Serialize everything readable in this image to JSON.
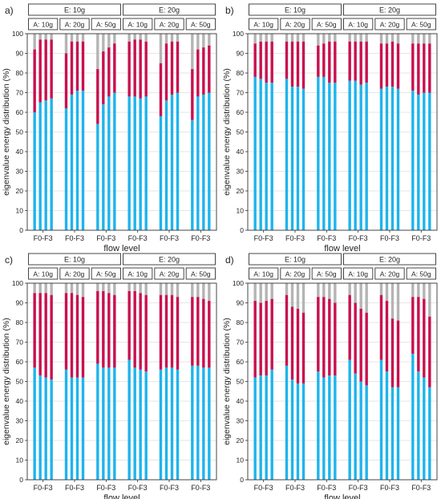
{
  "colors": {
    "bottom": "#1eb4ec",
    "middle": "#c8104e",
    "top": "#b4b4b4",
    "grid": "#dedede",
    "frame": "#333333"
  },
  "chart_data": [
    {
      "panel_label": "a)",
      "type": "bar",
      "stacked": true,
      "ylabel": "eigenvalue energy distribution (%)",
      "xlabel": "flow level",
      "ylim": [
        0,
        100
      ],
      "yticks": [
        0,
        10,
        20,
        30,
        40,
        50,
        60,
        70,
        80,
        90,
        100
      ],
      "grid": true,
      "E_groups": [
        "E: 10g",
        "E: 20g"
      ],
      "A_groups": [
        "A: 10g",
        "A: 20g",
        "A: 50g",
        "A: 10g",
        "A: 20g",
        "A: 50g"
      ],
      "group_xtick_labels": [
        "F0-F3",
        "F0-F3",
        "F0-F3",
        "F0-F3",
        "F0-F3",
        "F0-F3"
      ],
      "flow_levels": [
        "F0",
        "F1",
        "F2",
        "F3"
      ],
      "bottom": [
        [
          60,
          65,
          66,
          67
        ],
        [
          62,
          69,
          71,
          71
        ],
        [
          54,
          64,
          68,
          70
        ],
        [
          68,
          68,
          67,
          68
        ],
        [
          58,
          66,
          69,
          70
        ],
        [
          56,
          68,
          69,
          70
        ]
      ],
      "middle_top": [
        [
          92,
          97,
          97,
          97
        ],
        [
          90,
          96,
          96,
          96
        ],
        [
          82,
          91,
          93,
          95
        ],
        [
          96,
          97,
          97,
          96
        ],
        [
          85,
          95,
          96,
          96
        ],
        [
          82,
          92,
          93,
          94
        ]
      ]
    },
    {
      "panel_label": "b)",
      "type": "bar",
      "stacked": true,
      "ylabel": "eigenvalue energy distribution (%)",
      "xlabel": "flow level",
      "ylim": [
        0,
        100
      ],
      "yticks": [
        0,
        10,
        20,
        30,
        40,
        50,
        60,
        70,
        80,
        90,
        100
      ],
      "grid": true,
      "E_groups": [
        "E: 10g",
        "E: 20g"
      ],
      "A_groups": [
        "A: 10g",
        "A: 20g",
        "A: 50g",
        "A: 10g",
        "A: 20g",
        "A: 50g"
      ],
      "group_xtick_labels": [
        "F0-F3",
        "F0-F3",
        "F0-F3",
        "F0-F3",
        "F0-F3",
        "F0-F3"
      ],
      "flow_levels": [
        "F0",
        "F1",
        "F2",
        "F3"
      ],
      "bottom": [
        [
          78,
          77,
          75,
          75
        ],
        [
          77,
          73,
          73,
          72
        ],
        [
          78,
          78,
          75,
          75
        ],
        [
          76,
          76,
          74,
          75
        ],
        [
          72,
          73,
          73,
          72
        ],
        [
          71,
          69,
          70,
          70
        ]
      ],
      "middle_top": [
        [
          95,
          96,
          96,
          96
        ],
        [
          96,
          96,
          96,
          96
        ],
        [
          94,
          95,
          96,
          96
        ],
        [
          96,
          96,
          96,
          96
        ],
        [
          95,
          95,
          96,
          95
        ],
        [
          95,
          95,
          95,
          95
        ]
      ]
    },
    {
      "panel_label": "c)",
      "type": "bar",
      "stacked": true,
      "ylabel": "eigenvalue energy distribution (%)",
      "xlabel": "flow level",
      "ylim": [
        0,
        100
      ],
      "yticks": [
        0,
        10,
        20,
        30,
        40,
        50,
        60,
        70,
        80,
        90,
        100
      ],
      "grid": true,
      "E_groups": [
        "E: 10g",
        "E: 20g"
      ],
      "A_groups": [
        "A: 10g",
        "A: 20g",
        "A: 50g",
        "A: 10g",
        "A: 20g",
        "A: 50g"
      ],
      "group_xtick_labels": [
        "F0-F3",
        "F0-F3",
        "F0-F3",
        "F0-F3",
        "F0-F3",
        "F0-F3"
      ],
      "flow_levels": [
        "F0",
        "F1",
        "F2",
        "F3"
      ],
      "bottom": [
        [
          57,
          53,
          52,
          51
        ],
        [
          56,
          52,
          52,
          52
        ],
        [
          59,
          57,
          57,
          57
        ],
        [
          61,
          57,
          56,
          55
        ],
        [
          56,
          57,
          57,
          56
        ],
        [
          58,
          58,
          57,
          57
        ]
      ],
      "middle_top": [
        [
          95,
          95,
          95,
          94
        ],
        [
          95,
          95,
          94,
          93
        ],
        [
          96,
          96,
          95,
          94
        ],
        [
          96,
          96,
          95,
          94
        ],
        [
          94,
          94,
          94,
          93
        ],
        [
          93,
          93,
          92,
          91
        ]
      ]
    },
    {
      "panel_label": "d)",
      "type": "bar",
      "stacked": true,
      "ylabel": "eigenvalue energy distribution (%)",
      "xlabel": "flow level",
      "ylim": [
        0,
        100
      ],
      "yticks": [
        0,
        10,
        20,
        30,
        40,
        50,
        60,
        70,
        80,
        90,
        100
      ],
      "grid": true,
      "E_groups": [
        "E: 10g",
        "E: 20g"
      ],
      "A_groups": [
        "A: 10g",
        "A: 20g",
        "A: 50g",
        "A: 10g",
        "A: 20g",
        "A: 50g"
      ],
      "group_xtick_labels": [
        "F0-F3",
        "F0-F3",
        "F0-F3",
        "F0-F3",
        "F0-F3",
        "F0-F3"
      ],
      "flow_levels": [
        "F0",
        "F1",
        "F2",
        "F3"
      ],
      "bottom": [
        [
          52,
          53,
          53,
          56
        ],
        [
          58,
          51,
          49,
          49
        ],
        [
          55,
          52,
          53,
          53
        ],
        [
          61,
          54,
          50,
          48
        ],
        [
          61,
          55,
          47,
          47
        ],
        [
          64,
          55,
          52,
          47
        ]
      ],
      "middle_top": [
        [
          91,
          90,
          91,
          92
        ],
        [
          94,
          88,
          87,
          85
        ],
        [
          93,
          93,
          92,
          90
        ],
        [
          94,
          90,
          87,
          85
        ],
        [
          94,
          91,
          82,
          81
        ],
        [
          93,
          93,
          92,
          83
        ]
      ]
    }
  ]
}
